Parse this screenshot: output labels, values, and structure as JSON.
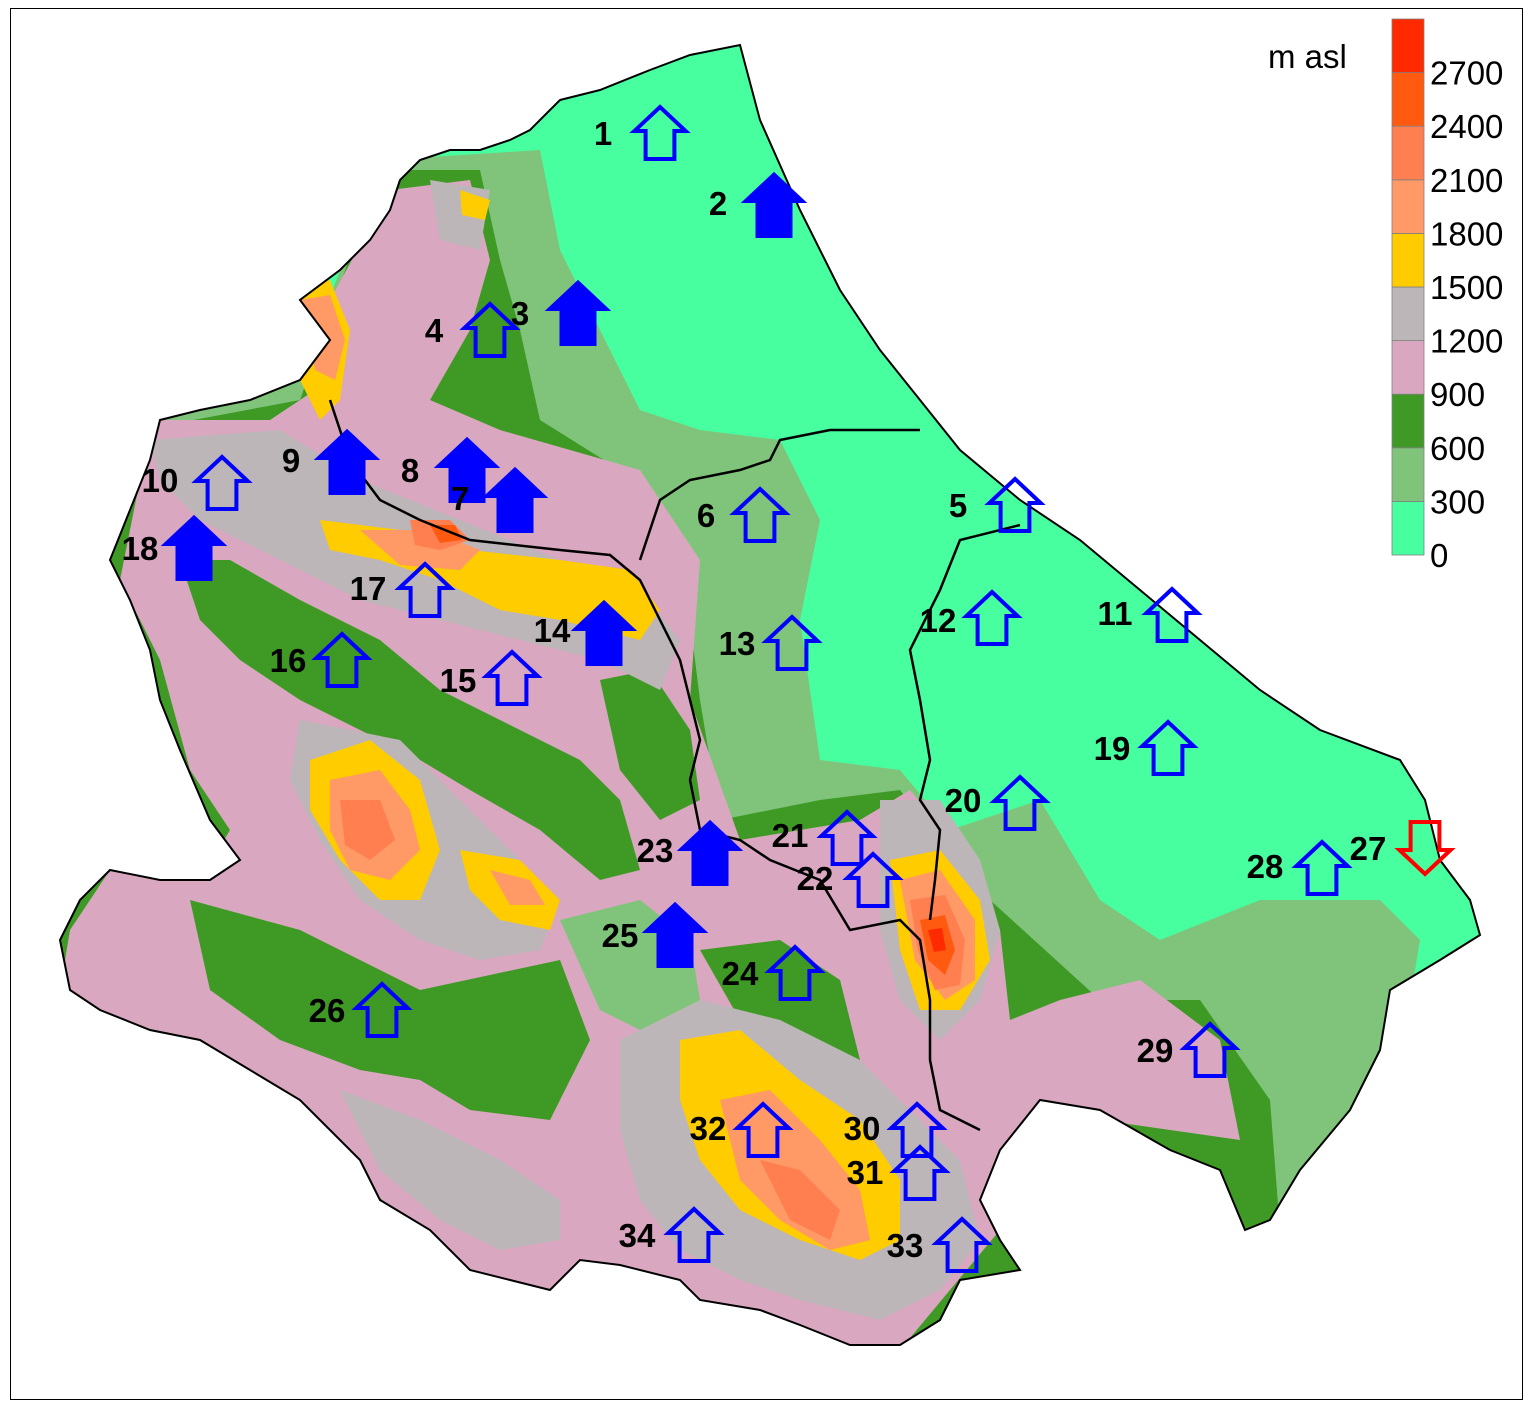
{
  "legend": {
    "unit": "m asl",
    "classes": [
      {
        "label": "0",
        "color": "#48FFA0"
      },
      {
        "label": "300",
        "color": "#7FC47A"
      },
      {
        "label": "600",
        "color": "#3F9A25"
      },
      {
        "label": "900",
        "color": "#D9A7C0"
      },
      {
        "label": "1200",
        "color": "#BCB6B8"
      },
      {
        "label": "1500",
        "color": "#FFCC00"
      },
      {
        "label": "1800",
        "color": "#FF9966"
      },
      {
        "label": "2100",
        "color": "#FF7F50"
      },
      {
        "label": "2400",
        "color": "#FF5A10"
      },
      {
        "label": "2700",
        "color": "#FF2A00"
      }
    ]
  },
  "arrow_styles": {
    "increase_significant": "#0000FF",
    "increase_not_significant": "#0000FF",
    "decrease_not_significant": "#FF0000"
  },
  "stations": [
    {
      "id": "1",
      "trend": "up",
      "style": "hollow"
    },
    {
      "id": "2",
      "trend": "up",
      "style": "filled"
    },
    {
      "id": "3",
      "trend": "up",
      "style": "filled"
    },
    {
      "id": "4",
      "trend": "up",
      "style": "hollow"
    },
    {
      "id": "5",
      "trend": "up",
      "style": "hollow"
    },
    {
      "id": "6",
      "trend": "up",
      "style": "hollow"
    },
    {
      "id": "7",
      "trend": "up",
      "style": "filled"
    },
    {
      "id": "8",
      "trend": "up",
      "style": "filled"
    },
    {
      "id": "9",
      "trend": "up",
      "style": "filled"
    },
    {
      "id": "10",
      "trend": "up",
      "style": "hollow"
    },
    {
      "id": "11",
      "trend": "up",
      "style": "hollow"
    },
    {
      "id": "12",
      "trend": "up",
      "style": "hollow"
    },
    {
      "id": "13",
      "trend": "up",
      "style": "hollow"
    },
    {
      "id": "14",
      "trend": "up",
      "style": "filled"
    },
    {
      "id": "15",
      "trend": "up",
      "style": "hollow"
    },
    {
      "id": "16",
      "trend": "up",
      "style": "hollow"
    },
    {
      "id": "17",
      "trend": "up",
      "style": "hollow"
    },
    {
      "id": "18",
      "trend": "up",
      "style": "filled"
    },
    {
      "id": "19",
      "trend": "up",
      "style": "hollow"
    },
    {
      "id": "20",
      "trend": "up",
      "style": "hollow"
    },
    {
      "id": "21",
      "trend": "up",
      "style": "hollow"
    },
    {
      "id": "22",
      "trend": "up",
      "style": "hollow"
    },
    {
      "id": "23",
      "trend": "up",
      "style": "filled"
    },
    {
      "id": "24",
      "trend": "up",
      "style": "hollow"
    },
    {
      "id": "25",
      "trend": "up",
      "style": "filled"
    },
    {
      "id": "26",
      "trend": "up",
      "style": "hollow"
    },
    {
      "id": "27",
      "trend": "down",
      "style": "hollow"
    },
    {
      "id": "28",
      "trend": "up",
      "style": "hollow"
    },
    {
      "id": "29",
      "trend": "up",
      "style": "hollow"
    },
    {
      "id": "30",
      "trend": "up",
      "style": "hollow"
    },
    {
      "id": "31",
      "trend": "up",
      "style": "hollow"
    },
    {
      "id": "32",
      "trend": "up",
      "style": "hollow"
    },
    {
      "id": "33",
      "trend": "up",
      "style": "hollow"
    },
    {
      "id": "34",
      "trend": "up",
      "style": "hollow"
    }
  ]
}
